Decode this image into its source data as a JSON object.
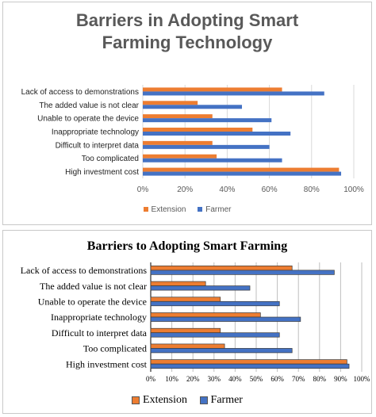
{
  "chart_data": [
    {
      "type": "bar",
      "orientation": "horizontal",
      "title": "Barriers in Adopting Smart Farming Technology",
      "categories": [
        "Lack of access to demonstrations",
        "The added value is not clear",
        "Unable to operate the device",
        "Inappropriate technology",
        "Difficult to interpret data",
        "Too complicated",
        "High investment cost"
      ],
      "series": [
        {
          "name": "Extension",
          "color": "#ED7D31",
          "values": [
            66,
            26,
            33,
            52,
            33,
            35,
            93
          ]
        },
        {
          "name": "Farmer",
          "color": "#4472C4",
          "values": [
            86,
            47,
            61,
            70,
            60,
            66,
            94
          ]
        }
      ],
      "x_ticks": [
        "0%",
        "20%",
        "40%",
        "60%",
        "80%",
        "100%"
      ],
      "xlim": [
        0,
        100
      ],
      "grid": true,
      "legend_position": "bottom"
    },
    {
      "type": "bar",
      "orientation": "horizontal",
      "title": "Barriers to Adopting Smart Farming",
      "categories": [
        "Lack of access to demonstrations",
        "The added value is not clear",
        "Unable to operate the device",
        "Inappropriate technology",
        "Difficult to interpret data",
        "Too complicated",
        "High investment cost"
      ],
      "series": [
        {
          "name": "Extension",
          "color": "#ED7D31",
          "values": [
            67,
            26,
            33,
            52,
            33,
            35,
            93
          ]
        },
        {
          "name": "Farmer",
          "color": "#4472C4",
          "values": [
            87,
            47,
            61,
            71,
            61,
            67,
            94
          ]
        }
      ],
      "x_ticks": [
        "0%",
        "10%",
        "20%",
        "30%",
        "40%",
        "50%",
        "60%",
        "70%",
        "80%",
        "90%",
        "100%"
      ],
      "xlim": [
        0,
        100
      ],
      "grid": true,
      "legend_position": "bottom"
    }
  ]
}
